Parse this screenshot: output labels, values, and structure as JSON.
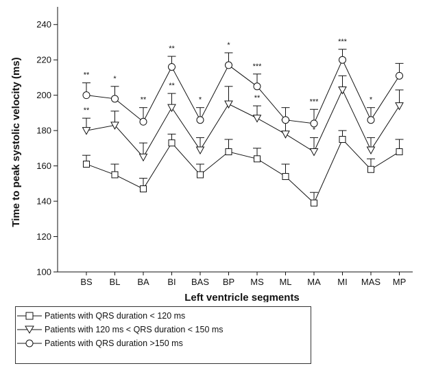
{
  "chart_data": {
    "type": "line",
    "xlabel": "Left ventricle segments",
    "ylabel": "Time to peak systolic velocity (ms)",
    "ylim": [
      100,
      250
    ],
    "yticks": [
      100,
      120,
      140,
      160,
      180,
      200,
      220,
      240
    ],
    "categories": [
      "BS",
      "BL",
      "BA",
      "BI",
      "BAS",
      "BP",
      "MS",
      "ML",
      "MA",
      "MI",
      "MAS",
      "MP"
    ],
    "series": [
      {
        "name": "Patients with QRS duration < 120 ms",
        "marker": "square",
        "values": [
          161,
          155,
          147,
          173,
          155,
          168,
          164,
          154,
          139,
          175,
          158,
          168
        ],
        "errors": [
          5,
          6,
          6,
          5,
          6,
          7,
          6,
          7,
          6,
          5,
          6,
          7
        ]
      },
      {
        "name": "Patients with 120 ms < QRS duration < 150 ms",
        "marker": "triangle-down",
        "values": [
          180,
          183,
          165,
          193,
          169,
          195,
          187,
          178,
          168,
          203,
          169,
          194
        ],
        "errors": [
          7,
          8,
          8,
          8,
          7,
          10,
          7,
          8,
          8,
          8,
          7,
          9
        ]
      },
      {
        "name": "Patients with QRS duration >150 ms",
        "marker": "circle",
        "values": [
          200,
          198,
          185,
          216,
          186,
          217,
          205,
          186,
          184,
          220,
          186,
          211
        ],
        "errors": [
          7,
          7,
          8,
          6,
          7,
          7,
          7,
          7,
          8,
          6,
          7,
          7
        ]
      }
    ],
    "significance_top": [
      "**",
      "*",
      "**",
      "**",
      "*",
      "*",
      "***",
      "",
      "***",
      "***",
      "*",
      ""
    ],
    "significance_middle": [
      "**",
      "",
      "",
      "**",
      "",
      "",
      "**",
      "",
      "*",
      "",
      "",
      ""
    ]
  },
  "legend": {
    "entries": [
      "Patients with QRS duration < 120 ms",
      "Patients with 120 ms < QRS duration < 150 ms",
      "Patients with QRS duration >150 ms"
    ]
  }
}
